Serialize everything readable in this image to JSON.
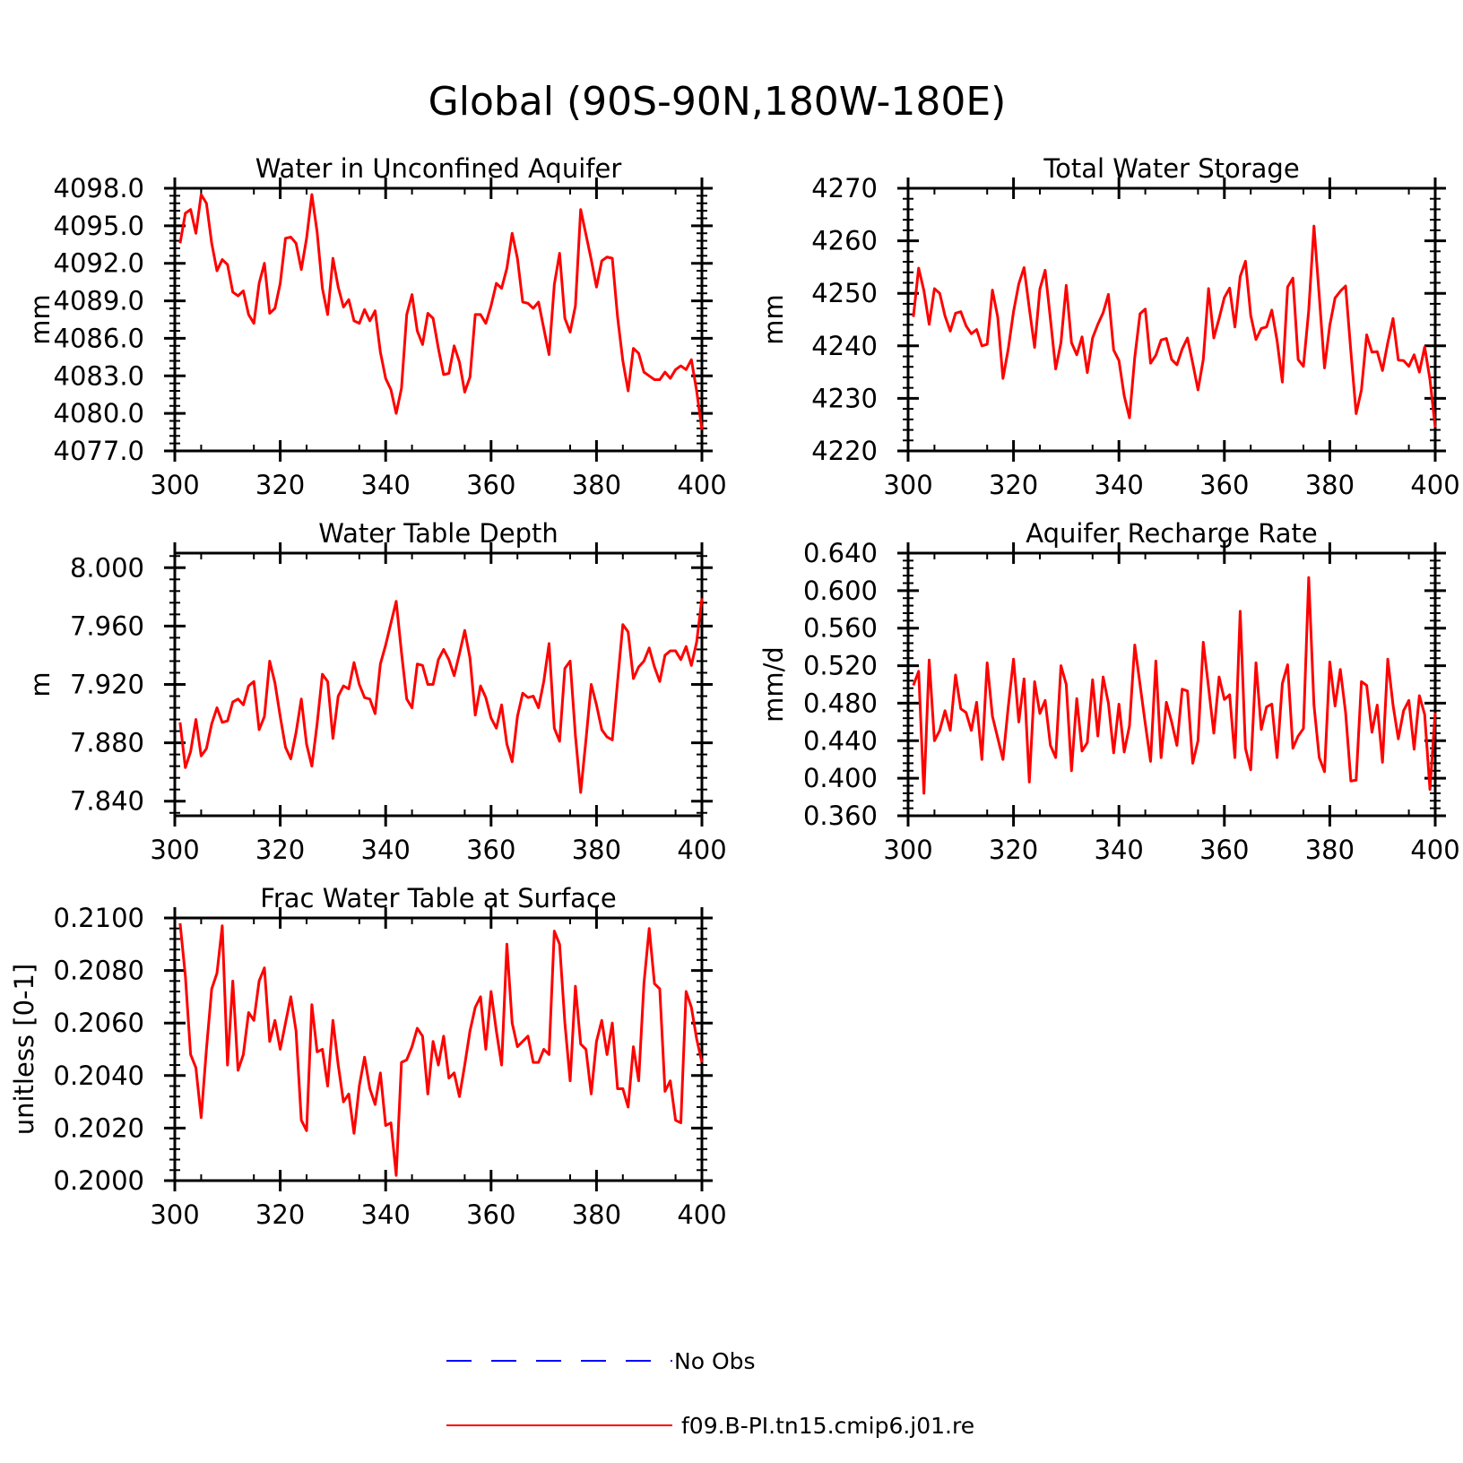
{
  "page_title": "Global (90S-90N,180W-180E)",
  "legend": [
    {
      "label": "No Obs",
      "color": "#0000ff",
      "dash": true
    },
    {
      "label": "f09.B-PI.tn15.cmip6.j01.re",
      "color": "#ff0000",
      "dash": false
    }
  ],
  "chart_data": [
    {
      "type": "line",
      "title": "Water in Unconfined Aquifer",
      "ylabel": "mm",
      "xlim": [
        300,
        400
      ],
      "ylim": [
        4077.0,
        4098.0
      ],
      "xticks": [
        300,
        320,
        340,
        360,
        380,
        400
      ],
      "yticks": [
        4077.0,
        4080.0,
        4083.0,
        4086.0,
        4089.0,
        4092.0,
        4095.0,
        4098.0
      ],
      "ydecimals": 1,
      "series": [
        {
          "color": "#ff0000",
          "x0": 301,
          "values": [
            4093.6,
            4096.0,
            4096.3,
            4094.4,
            4097.5,
            4096.8,
            4093.6,
            4091.4,
            4092.3,
            4091.9,
            4089.7,
            4089.4,
            4089.8,
            4087.9,
            4087.2,
            4090.4,
            4092.0,
            4088.0,
            4088.4,
            4090.4,
            4094.0,
            4094.1,
            4093.6,
            4091.5,
            4094.0,
            4097.5,
            4094.5,
            4090.0,
            4087.9,
            4092.4,
            4090.1,
            4088.5,
            4089.1,
            4087.4,
            4087.2,
            4088.3,
            4087.4,
            4088.2,
            4084.9,
            4082.8,
            4081.9,
            4080.0,
            4082.0,
            4087.9,
            4089.5,
            4086.6,
            4085.5,
            4088.0,
            4087.6,
            4085.2,
            4083.1,
            4083.2,
            4085.4,
            4084.1,
            4081.7,
            4082.9,
            4087.9,
            4087.9,
            4087.2,
            4088.6,
            4090.4,
            4090.0,
            4091.6,
            4094.4,
            4092.4,
            4088.9,
            4088.8,
            4088.4,
            4088.9,
            4086.8,
            4084.7,
            4090.3,
            4092.8,
            4087.6,
            4086.5,
            4088.6,
            4096.3,
            4094.3,
            4092.3,
            4090.1,
            4092.2,
            4092.5,
            4092.4,
            4087.7,
            4084.2,
            4081.8,
            4085.2,
            4084.8,
            4083.3,
            4083.0,
            4082.7,
            4082.7,
            4083.3,
            4082.8,
            4083.5,
            4083.8,
            4083.5,
            4084.3,
            4081.8,
            4078.7
          ]
        }
      ]
    },
    {
      "type": "line",
      "title": "Total Water Storage",
      "ylabel": "mm",
      "xlim": [
        300,
        400
      ],
      "ylim": [
        4220,
        4270
      ],
      "xticks": [
        300,
        320,
        340,
        360,
        380,
        400
      ],
      "yticks": [
        4220,
        4230,
        4240,
        4250,
        4260,
        4270
      ],
      "ydecimals": 0,
      "series": [
        {
          "color": "#ff0000",
          "x0": 301,
          "values": [
            4245.5,
            4254.8,
            4250.5,
            4244.1,
            4250.9,
            4250.0,
            4245.7,
            4242.8,
            4246.2,
            4246.5,
            4243.8,
            4242.3,
            4243.1,
            4240.0,
            4240.3,
            4250.6,
            4245.5,
            4233.8,
            4239.4,
            4246.5,
            4251.8,
            4254.9,
            4247.1,
            4239.7,
            4250.8,
            4254.4,
            4245.1,
            4235.6,
            4240.6,
            4251.5,
            4240.6,
            4238.3,
            4241.7,
            4234.9,
            4241.5,
            4244.1,
            4246.3,
            4249.8,
            4239.2,
            4237.2,
            4230.5,
            4226.3,
            4237.8,
            4246.1,
            4247.0,
            4236.7,
            4238.2,
            4241.1,
            4241.4,
            4237.4,
            4236.4,
            4239.4,
            4241.5,
            4236.7,
            4231.6,
            4237.4,
            4250.9,
            4241.5,
            4245.2,
            4249.2,
            4251.0,
            4243.6,
            4253.2,
            4256.1,
            4245.8,
            4241.2,
            4243.3,
            4243.6,
            4246.8,
            4241.0,
            4233.1,
            4251.2,
            4252.9,
            4237.4,
            4236.1,
            4246.7,
            4262.8,
            4249.5,
            4235.8,
            4243.9,
            4249.1,
            4250.4,
            4251.4,
            4238.9,
            4227.1,
            4231.6,
            4242.1,
            4238.8,
            4238.9,
            4235.3,
            4240.6,
            4245.2,
            4237.3,
            4237.2,
            4236.1,
            4238.3,
            4235.0,
            4239.8,
            4233.6,
            4224.5
          ]
        }
      ]
    },
    {
      "type": "line",
      "title": "Water Table Depth",
      "ylabel": "m",
      "xlim": [
        300,
        400
      ],
      "ylim": [
        7.83,
        8.01
      ],
      "xticks": [
        300,
        320,
        340,
        360,
        380,
        400
      ],
      "yticks": [
        7.84,
        7.88,
        7.92,
        7.96,
        8.0
      ],
      "ydecimals": 3,
      "series": [
        {
          "color": "#ff0000",
          "x0": 301,
          "values": [
            7.894,
            7.863,
            7.874,
            7.896,
            7.871,
            7.876,
            7.893,
            7.904,
            7.894,
            7.895,
            7.908,
            7.91,
            7.906,
            7.919,
            7.922,
            7.889,
            7.898,
            7.936,
            7.921,
            7.898,
            7.877,
            7.869,
            7.887,
            7.91,
            7.879,
            7.864,
            7.893,
            7.927,
            7.922,
            7.883,
            7.912,
            7.919,
            7.917,
            7.935,
            7.92,
            7.911,
            7.91,
            7.9,
            7.934,
            7.947,
            7.962,
            7.977,
            7.942,
            7.91,
            7.904,
            7.934,
            7.933,
            7.92,
            7.92,
            7.937,
            7.944,
            7.937,
            7.926,
            7.941,
            7.957,
            7.938,
            7.899,
            7.919,
            7.911,
            7.897,
            7.89,
            7.906,
            7.879,
            7.867,
            7.898,
            7.914,
            7.911,
            7.912,
            7.904,
            7.922,
            7.948,
            7.89,
            7.881,
            7.931,
            7.936,
            7.885,
            7.846,
            7.882,
            7.92,
            7.906,
            7.889,
            7.884,
            7.882,
            7.922,
            7.961,
            7.956,
            7.924,
            7.932,
            7.936,
            7.945,
            7.932,
            7.922,
            7.94,
            7.943,
            7.943,
            7.937,
            7.946,
            7.933,
            7.949,
            7.979
          ]
        }
      ]
    },
    {
      "type": "line",
      "title": "Aquifer Recharge Rate",
      "ylabel": "mm/d",
      "xlim": [
        300,
        400
      ],
      "ylim": [
        0.36,
        0.64
      ],
      "xticks": [
        300,
        320,
        340,
        360,
        380,
        400
      ],
      "yticks": [
        0.36,
        0.4,
        0.44,
        0.48,
        0.52,
        0.56,
        0.6,
        0.64
      ],
      "ydecimals": 3,
      "series": [
        {
          "color": "#ff0000",
          "x0": 301,
          "values": [
            0.499,
            0.514,
            0.384,
            0.526,
            0.44,
            0.451,
            0.472,
            0.451,
            0.51,
            0.474,
            0.47,
            0.451,
            0.481,
            0.42,
            0.523,
            0.466,
            0.443,
            0.42,
            0.476,
            0.527,
            0.46,
            0.506,
            0.396,
            0.503,
            0.469,
            0.483,
            0.435,
            0.422,
            0.52,
            0.5,
            0.408,
            0.485,
            0.429,
            0.438,
            0.505,
            0.445,
            0.508,
            0.48,
            0.427,
            0.479,
            0.428,
            0.456,
            0.542,
            0.5,
            0.458,
            0.418,
            0.525,
            0.422,
            0.481,
            0.46,
            0.435,
            0.495,
            0.493,
            0.416,
            0.44,
            0.545,
            0.497,
            0.448,
            0.508,
            0.484,
            0.489,
            0.422,
            0.578,
            0.432,
            0.409,
            0.523,
            0.452,
            0.476,
            0.479,
            0.422,
            0.501,
            0.521,
            0.432,
            0.445,
            0.453,
            0.614,
            0.478,
            0.422,
            0.407,
            0.524,
            0.477,
            0.516,
            0.47,
            0.397,
            0.398,
            0.503,
            0.499,
            0.449,
            0.478,
            0.417,
            0.527,
            0.478,
            0.442,
            0.472,
            0.483,
            0.431,
            0.488,
            0.468,
            0.388,
            0.47
          ]
        }
      ]
    },
    {
      "type": "line",
      "title": "Frac Water Table at Surface",
      "ylabel": "unitless [0-1]",
      "xlim": [
        300,
        400
      ],
      "ylim": [
        0.2,
        0.21
      ],
      "xticks": [
        300,
        320,
        340,
        360,
        380,
        400
      ],
      "yticks": [
        0.2,
        0.202,
        0.204,
        0.206,
        0.208,
        0.21
      ],
      "ydecimals": 4,
      "series": [
        {
          "color": "#ff0000",
          "x0": 301,
          "values": [
            0.2098,
            0.2078,
            0.2048,
            0.2043,
            0.2024,
            0.205,
            0.2073,
            0.2079,
            0.2097,
            0.2044,
            0.2076,
            0.2042,
            0.2048,
            0.2064,
            0.2061,
            0.2076,
            0.2081,
            0.2053,
            0.2061,
            0.205,
            0.206,
            0.207,
            0.2057,
            0.2023,
            0.2019,
            0.2067,
            0.2049,
            0.205,
            0.2036,
            0.2061,
            0.2044,
            0.203,
            0.2033,
            0.2018,
            0.2036,
            0.2047,
            0.2035,
            0.2029,
            0.2041,
            0.2021,
            0.2022,
            0.2002,
            0.2045,
            0.2046,
            0.2051,
            0.2058,
            0.2055,
            0.2033,
            0.2053,
            0.2044,
            0.2055,
            0.2039,
            0.2041,
            0.2032,
            0.2044,
            0.2057,
            0.2066,
            0.207,
            0.205,
            0.2072,
            0.2057,
            0.2044,
            0.209,
            0.206,
            0.2051,
            0.2053,
            0.2055,
            0.2045,
            0.2045,
            0.205,
            0.2048,
            0.2095,
            0.209,
            0.206,
            0.2038,
            0.2074,
            0.2052,
            0.205,
            0.2033,
            0.2053,
            0.2061,
            0.2048,
            0.206,
            0.2035,
            0.2035,
            0.2028,
            0.2051,
            0.2038,
            0.2075,
            0.2096,
            0.2075,
            0.2073,
            0.2034,
            0.2038,
            0.2023,
            0.2022,
            0.2072,
            0.2066,
            0.2054,
            0.2045
          ]
        }
      ]
    }
  ]
}
